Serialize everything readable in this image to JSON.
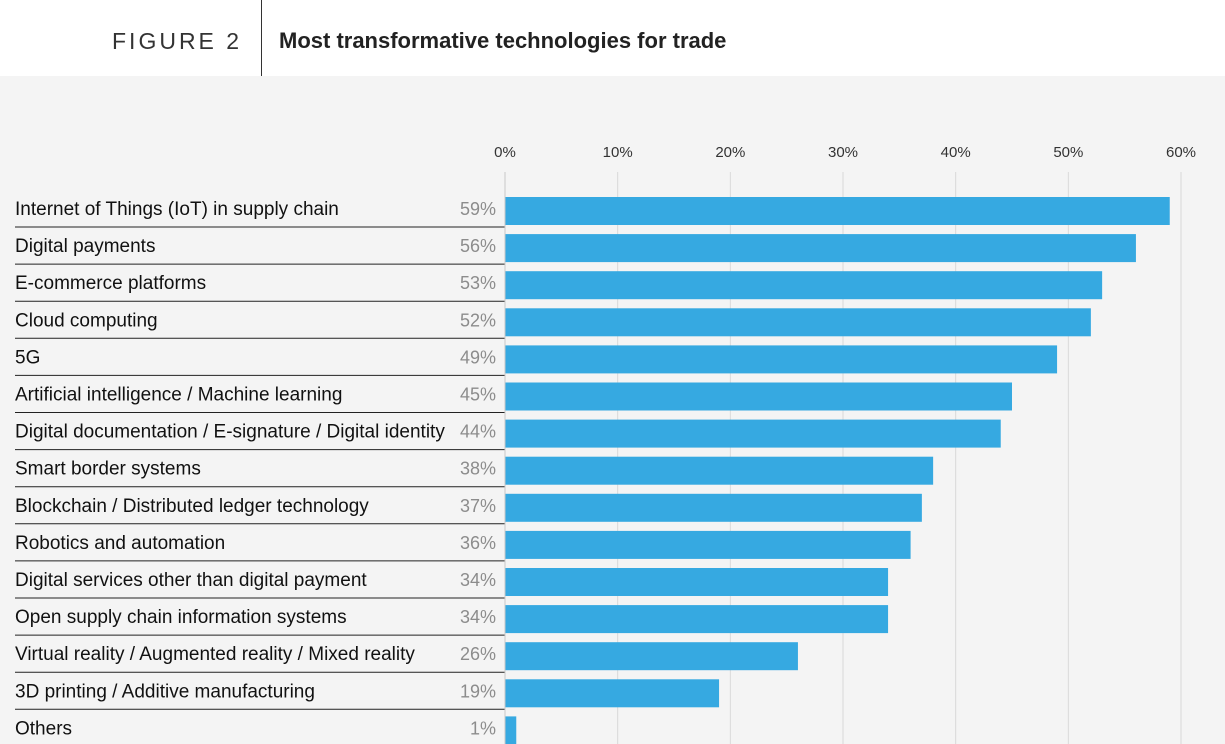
{
  "figure": {
    "label": "FIGURE 2",
    "title": "Most transformative technologies for trade"
  },
  "colors": {
    "bar": "#36a9e1",
    "background": "#f4f4f4",
    "gridline": "#d9d9d9",
    "value_label": "#8c8c8c"
  },
  "chart_data": {
    "type": "bar",
    "orientation": "horizontal",
    "title": "Most transformative technologies for trade",
    "xlim": [
      0,
      60
    ],
    "ticks": [
      0,
      10,
      20,
      30,
      40,
      50,
      60
    ],
    "tick_labels": [
      "0%",
      "10%",
      "20%",
      "30%",
      "40%",
      "50%",
      "60%"
    ],
    "axis_position": "top",
    "grid": true,
    "categories": [
      "Internet of Things (IoT) in supply chain",
      "Digital payments",
      "E-commerce platforms",
      "Cloud computing",
      "5G",
      "Artificial intelligence / Machine learning",
      "Digital documentation / E-signature / Digital identity",
      "Smart border systems",
      "Blockchain / Distributed ledger technology",
      "Robotics and automation",
      "Digital services other than digital payment",
      "Open supply chain information systems",
      "Virtual reality / Augmented reality / Mixed reality",
      "3D printing / Additive manufacturing",
      "Others"
    ],
    "values": [
      59,
      56,
      53,
      52,
      49,
      45,
      44,
      38,
      37,
      36,
      34,
      34,
      26,
      19,
      1
    ],
    "value_labels": [
      "59%",
      "56%",
      "53%",
      "52%",
      "49%",
      "45%",
      "44%",
      "38%",
      "37%",
      "36%",
      "34%",
      "34%",
      "26%",
      "19%",
      "1%"
    ]
  }
}
